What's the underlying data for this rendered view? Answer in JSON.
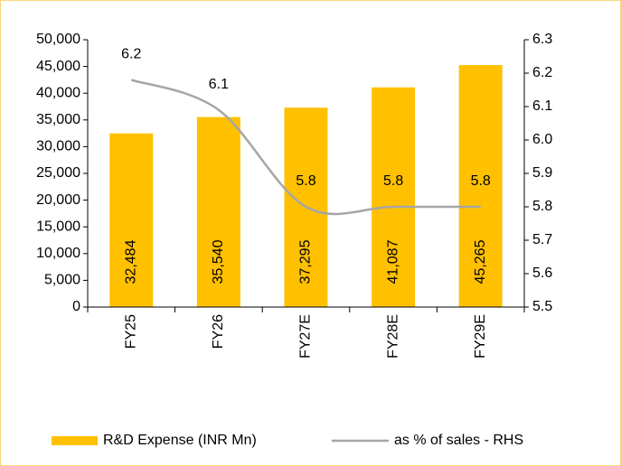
{
  "chart_data": {
    "type": "bar_line",
    "categories": [
      "FY25",
      "FY26",
      "FY27E",
      "FY28E",
      "FY29E"
    ],
    "series": [
      {
        "name": "R&D Expense (INR Mn)",
        "color": "#ffc000",
        "type": "bar",
        "values": [
          32484,
          35540,
          37295,
          41087,
          45265
        ],
        "value_labels": [
          "32,484",
          "35,540",
          "37,295",
          "41,087",
          "45,265"
        ]
      },
      {
        "name": "as % of sales - RHS",
        "color": "#a6a6a6",
        "type": "line",
        "axis": "y2",
        "values": [
          6.18,
          6.09,
          5.8,
          5.8,
          5.8
        ],
        "value_labels": [
          "6.2",
          "6.1",
          "5.8",
          "5.8",
          "5.8"
        ]
      }
    ],
    "ylim": [
      0,
      50000
    ],
    "yticks": [
      0,
      {
        "value": 5000,
        "label": "5,000"
      },
      {
        "value": 10000,
        "label": "10,000"
      },
      {
        "value": 15000,
        "label": "15,000"
      },
      {
        "value": 20000,
        "label": "20,000"
      },
      {
        "value": 25000,
        "label": "25,000"
      },
      {
        "value": 30000,
        "label": "30,000"
      },
      {
        "value": 35000,
        "label": "35,000"
      },
      {
        "value": 40000,
        "label": "40,000"
      },
      {
        "value": 45000,
        "label": "45,000"
      },
      {
        "value": 50000,
        "label": "50,000"
      }
    ],
    "y2lim": [
      5.5,
      6.3
    ],
    "y2ticks": [
      5.5,
      5.6,
      5.7,
      5.8,
      5.9,
      {
        "value": 6.0,
        "label": "6.0"
      },
      6.1,
      6.2,
      6.3
    ],
    "legend": "bottom"
  }
}
